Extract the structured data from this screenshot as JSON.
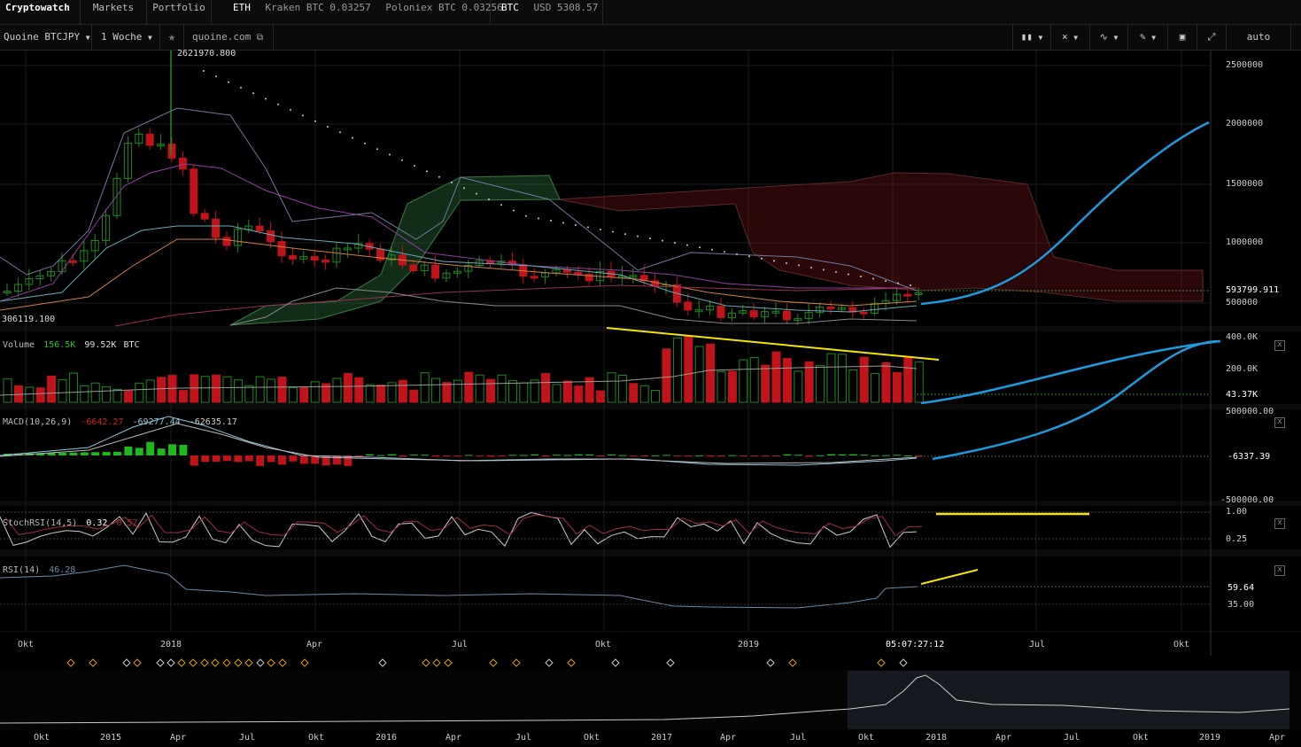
{
  "topbar": {
    "brand": "Cryptowatch",
    "markets": "Markets",
    "portfolio": "Portfolio",
    "eth_label": "ETH",
    "eth_kraken": "Kraken BTC 0.03257",
    "eth_poloniex": "Poloniex BTC 0.03256",
    "btc_label": "BTC",
    "btc_usd": "USD 5308.57"
  },
  "toolbar": {
    "market": "Quoine BTCJPY",
    "interval": "1 Woche",
    "link": "quoine.com",
    "scale": "auto",
    "icons": [
      "chart-type-icon",
      "indicators-icon",
      "compare-icon",
      "draw-icon",
      "screenshot-icon",
      "fullscreen-icon",
      "star-icon",
      "external-link-icon",
      "chevron-down-icon"
    ]
  },
  "price_panel": {
    "high_label": "2621970.800",
    "low_label": "306119.100",
    "y_ticks": [
      "2500000",
      "2000000",
      "1500000",
      "1000000",
      "500000"
    ],
    "last_price": "593799.911"
  },
  "volume_panel": {
    "title": "Volume",
    "value1": "156.5K",
    "value2": "99.52K",
    "unit": "BTC",
    "y_ticks": [
      "400.0K",
      "200.0K"
    ],
    "last": "43.37K",
    "close": "x"
  },
  "macd_panel": {
    "title": "MACD(10,26,9)",
    "hist": "-6642.27",
    "macd": "-69277.44",
    "signal": "-62635.17",
    "y_top": "500000.00",
    "y_bottom": "-500000.00",
    "last": "-6337.39",
    "close": "x"
  },
  "stochrsi_panel": {
    "title": "StochRSI(14,5)",
    "k": "0.32",
    "d": "0.52",
    "y_top": "1.00",
    "y_low": "0.25",
    "close": "x"
  },
  "rsi_panel": {
    "title": "RSI(14)",
    "value": "46.28",
    "last": "59.64",
    "level": "35.00",
    "close": "x"
  },
  "time_axis": {
    "labels": [
      "Okt",
      "2018",
      "Apr",
      "Jul",
      "Okt",
      "2019",
      "Jul",
      "Okt"
    ],
    "cursor_time": "05:07:27:12"
  },
  "navigator": {
    "labels": [
      "Okt",
      "2015",
      "Apr",
      "Jul",
      "Okt",
      "2016",
      "Apr",
      "Jul",
      "Okt",
      "2017",
      "Apr",
      "Jul",
      "Okt",
      "2018",
      "Apr",
      "Jul",
      "Okt",
      "2019",
      "Apr"
    ]
  },
  "colors": {
    "up": "#1f8a1f",
    "down": "#c0141a",
    "annotation_yellow": "#f2e600",
    "annotation_blue": "#1e9be0",
    "event_marker": "#e0a000"
  }
}
